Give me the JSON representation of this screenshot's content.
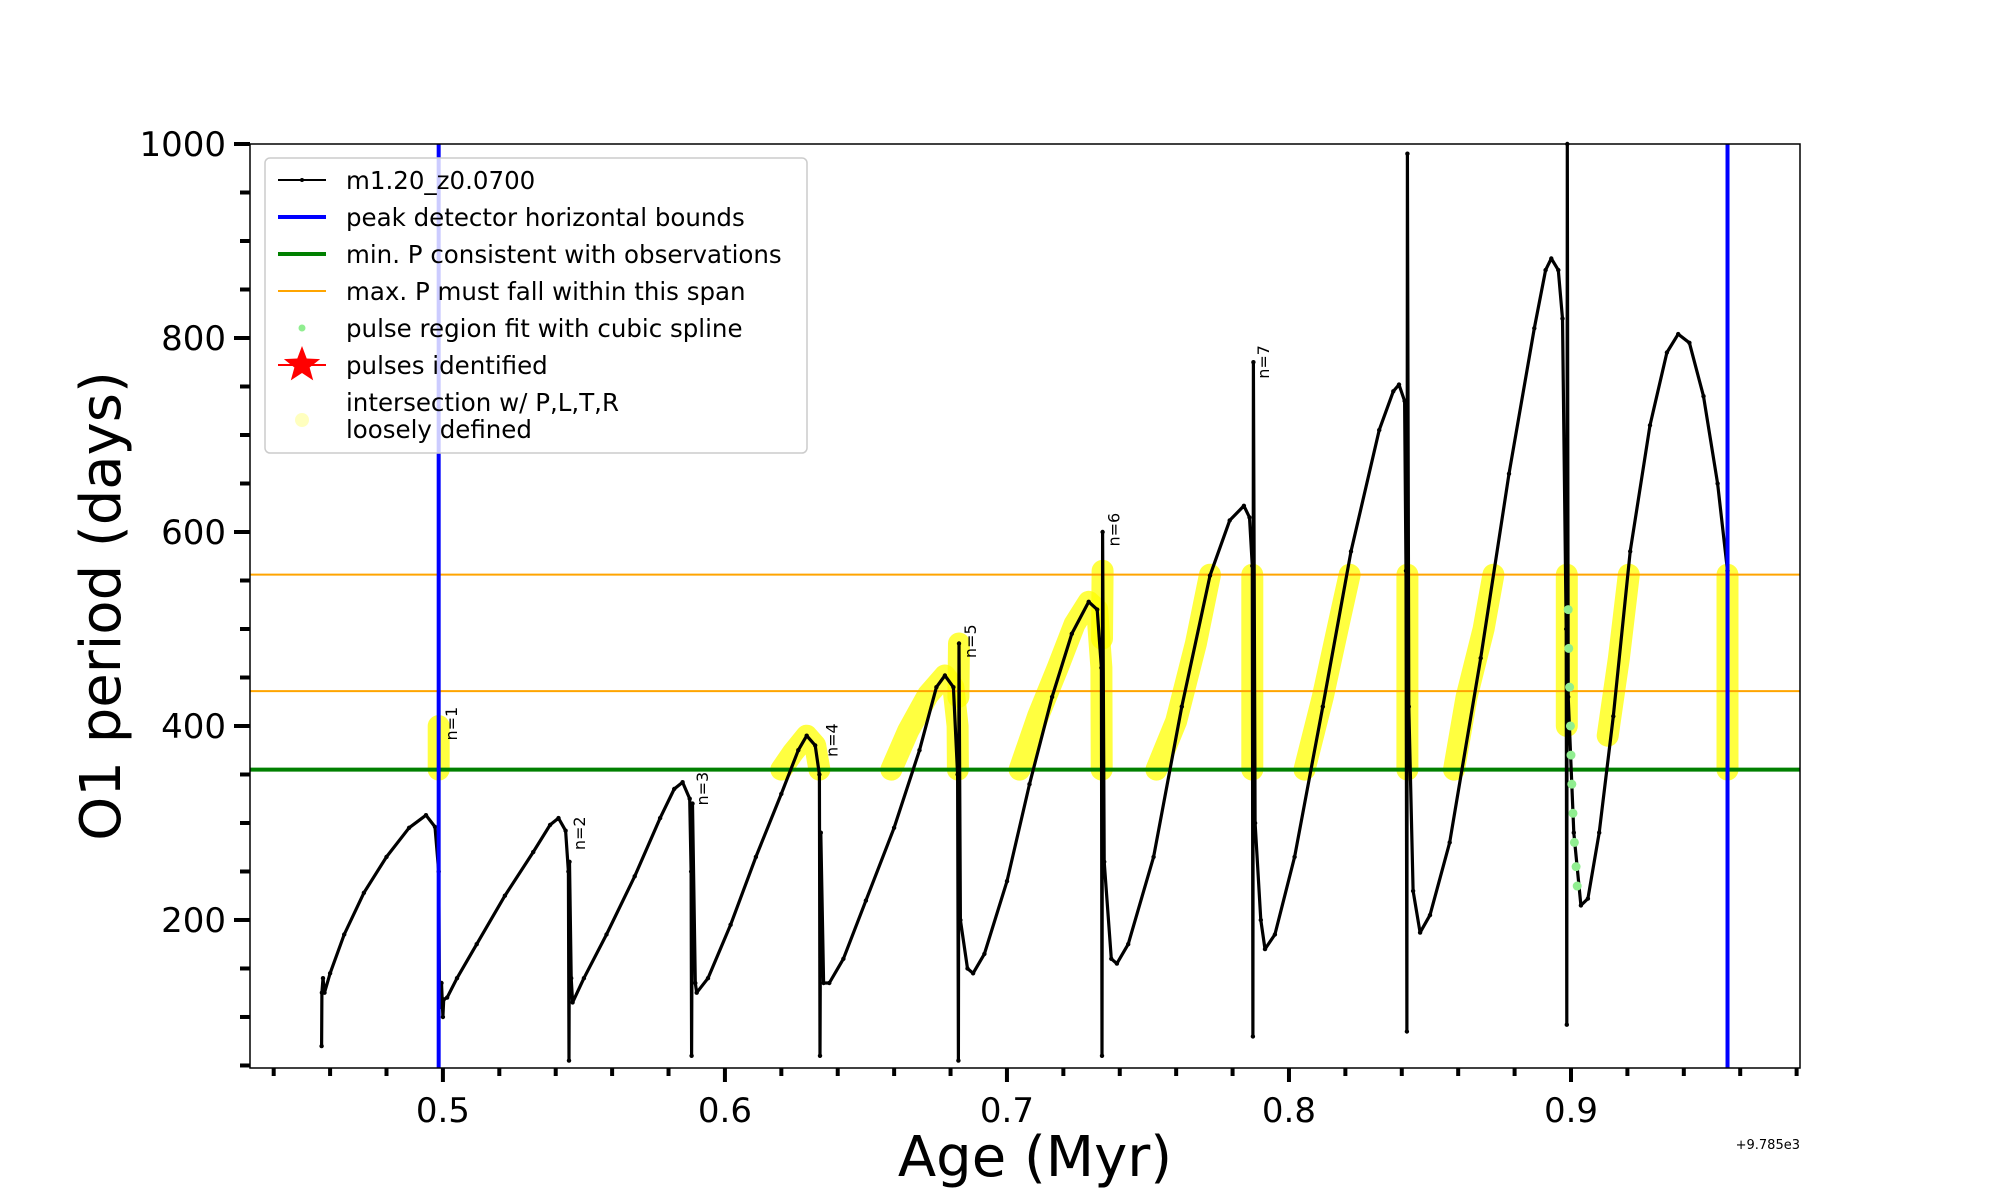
{
  "chart_data": {
    "type": "line",
    "title": "",
    "xlabel": "Age (Myr)",
    "ylabel": "O1 period (days)",
    "x_offset_text": "+9.785e3",
    "xlim": [
      0.4316,
      0.9812
    ],
    "ylim": [
      47.4,
      1000
    ],
    "x_major_ticks": [
      0.5,
      0.6,
      0.7,
      0.8,
      0.9
    ],
    "x_tick_labels": [
      "0.5",
      "0.6",
      "0.7",
      "0.8",
      "0.9"
    ],
    "x_minor_step": 0.02,
    "y_major_ticks": [
      200,
      400,
      600,
      800,
      1000
    ],
    "y_tick_labels": [
      "200",
      "400",
      "600",
      "800",
      "1000"
    ],
    "y_minor_step": 50,
    "grid": false,
    "legend_position": "upper-left",
    "colors": {
      "track": "#000000",
      "bounds": "#0000ff",
      "min_p": "#008000",
      "max_p_span": "#ffa500",
      "spline": "#90ee90",
      "pulses": "#ff0000",
      "intersection": "#ffff00"
    },
    "legend": [
      {
        "label": "m1.20_z0.0700",
        "marker": "line-dot",
        "color_key": "track"
      },
      {
        "label": "peak detector horizontal bounds",
        "marker": "thick-line",
        "color_key": "bounds"
      },
      {
        "label": "min. P consistent with observations",
        "marker": "thick-line",
        "color_key": "min_p"
      },
      {
        "label": "max. P must fall within this span",
        "marker": "thin-line",
        "color_key": "max_p_span"
      },
      {
        "label": "pulse region fit with cubic spline",
        "marker": "dot",
        "color_key": "spline"
      },
      {
        "label": "pulses identified",
        "marker": "star",
        "color_key": "pulses"
      },
      {
        "label": "intersection w/ P,L,T,R\nloosely defined",
        "marker": "circle",
        "color_key": "intersection"
      }
    ],
    "bounds_x": [
      0.4985,
      0.9555
    ],
    "min_p": 355,
    "max_p_span": [
      436,
      556
    ],
    "series": [
      {
        "name": "m1.20_z0.0700",
        "segments": [
          [
            [
              0.457,
              70
            ],
            [
              0.4571,
              125
            ],
            [
              0.4575,
              140
            ],
            [
              0.458,
              125
            ],
            [
              0.46,
              145
            ],
            [
              0.465,
              185
            ],
            [
              0.472,
              228
            ],
            [
              0.48,
              265
            ],
            [
              0.488,
              295
            ],
            [
              0.494,
              308
            ],
            [
              0.4972,
              296
            ],
            [
              0.4985,
              250
            ],
            [
              0.4988,
              110
            ],
            [
              0.4995,
              135
            ],
            [
              0.5,
              100
            ],
            [
              0.5003,
              118
            ],
            [
              0.5015,
              120
            ],
            [
              0.505,
              140
            ],
            [
              0.512,
              175
            ],
            [
              0.522,
              225
            ],
            [
              0.532,
              270
            ],
            [
              0.538,
              298
            ],
            [
              0.541,
              305
            ],
            [
              0.5435,
              292
            ],
            [
              0.5445,
              250
            ],
            [
              0.5447,
              55
            ],
            [
              0.5449,
              260
            ],
            [
              0.5455,
              140
            ],
            [
              0.546,
              115
            ],
            [
              0.55,
              140
            ],
            [
              0.558,
              185
            ],
            [
              0.568,
              245
            ],
            [
              0.577,
              305
            ],
            [
              0.582,
              335
            ],
            [
              0.585,
              342
            ],
            [
              0.5875,
              325
            ],
            [
              0.588,
              250
            ],
            [
              0.5882,
              60
            ],
            [
              0.5885,
              320
            ],
            [
              0.5895,
              135
            ],
            [
              0.59,
              125
            ],
            [
              0.594,
              140
            ],
            [
              0.602,
              195
            ],
            [
              0.611,
              265
            ],
            [
              0.62,
              330
            ],
            [
              0.626,
              375
            ],
            [
              0.629,
              390
            ],
            [
              0.632,
              380
            ],
            [
              0.6335,
              350
            ],
            [
              0.6337,
              60
            ],
            [
              0.634,
              290
            ],
            [
              0.635,
              135
            ],
            [
              0.637,
              135
            ],
            [
              0.642,
              160
            ],
            [
              0.65,
              220
            ],
            [
              0.66,
              295
            ],
            [
              0.669,
              375
            ],
            [
              0.675,
              440
            ],
            [
              0.678,
              452
            ],
            [
              0.681,
              440
            ],
            [
              0.6825,
              350
            ],
            [
              0.6828,
              55
            ],
            [
              0.683,
              485
            ],
            [
              0.6835,
              200
            ],
            [
              0.686,
              150
            ],
            [
              0.688,
              145
            ],
            [
              0.692,
              165
            ],
            [
              0.7,
              240
            ],
            [
              0.708,
              340
            ],
            [
              0.716,
              430
            ],
            [
              0.723,
              495
            ],
            [
              0.729,
              528
            ],
            [
              0.732,
              520
            ],
            [
              0.7335,
              460
            ],
            [
              0.7337,
              60
            ],
            [
              0.7339,
              600
            ],
            [
              0.7345,
              260
            ],
            [
              0.737,
              160
            ],
            [
              0.739,
              155
            ],
            [
              0.743,
              175
            ],
            [
              0.752,
              265
            ],
            [
              0.762,
              420
            ],
            [
              0.772,
              555
            ],
            [
              0.779,
              612
            ],
            [
              0.784,
              627
            ],
            [
              0.786,
              615
            ],
            [
              0.787,
              565
            ],
            [
              0.7872,
              80
            ],
            [
              0.7874,
              775
            ],
            [
              0.788,
              300
            ],
            [
              0.79,
              200
            ],
            [
              0.7915,
              170
            ],
            [
              0.795,
              185
            ],
            [
              0.802,
              265
            ],
            [
              0.812,
              420
            ],
            [
              0.822,
              580
            ],
            [
              0.832,
              705
            ],
            [
              0.837,
              745
            ],
            [
              0.839,
              752
            ],
            [
              0.841,
              735
            ],
            [
              0.8415,
              560
            ],
            [
              0.8418,
              85
            ],
            [
              0.842,
              990
            ],
            [
              0.8425,
              420
            ],
            [
              0.844,
              230
            ],
            [
              0.8465,
              187
            ],
            [
              0.85,
              205
            ],
            [
              0.857,
              280
            ],
            [
              0.868,
              470
            ],
            [
              0.878,
              660
            ],
            [
              0.887,
              810
            ],
            [
              0.891,
              870
            ],
            [
              0.893,
              882
            ],
            [
              0.8955,
              870
            ],
            [
              0.897,
              820
            ],
            [
              0.8983,
              500
            ],
            [
              0.8985,
              92
            ],
            [
              0.8987,
              1000
            ],
            [
              0.899,
              430
            ],
            [
              0.901,
              290
            ],
            [
              0.9035,
              215
            ],
            [
              0.906,
              222
            ],
            [
              0.91,
              290
            ],
            [
              0.915,
              410
            ],
            [
              0.921,
              580
            ],
            [
              0.928,
              710
            ],
            [
              0.934,
              785
            ],
            [
              0.938,
              804
            ],
            [
              0.942,
              795
            ],
            [
              0.947,
              740
            ],
            [
              0.952,
              650
            ],
            [
              0.9555,
              560
            ]
          ]
        ]
      }
    ],
    "intersection_segments": [
      [
        [
          0.4985,
          355
        ],
        [
          0.4985,
          400
        ]
      ],
      [
        [
          0.62,
          355
        ],
        [
          0.624,
          372
        ],
        [
          0.629,
          390
        ],
        [
          0.632,
          380
        ],
        [
          0.6335,
          355
        ]
      ],
      [
        [
          0.659,
          355
        ],
        [
          0.665,
          395
        ],
        [
          0.672,
          432
        ],
        [
          0.678,
          452
        ],
        [
          0.681,
          440
        ],
        [
          0.6825,
          400
        ],
        [
          0.6826,
          355
        ]
      ],
      [
        [
          0.6828,
          430
        ],
        [
          0.683,
          485
        ]
      ],
      [
        [
          0.7045,
          355
        ],
        [
          0.711,
          410
        ],
        [
          0.718,
          460
        ],
        [
          0.724,
          505
        ],
        [
          0.729,
          528
        ],
        [
          0.732,
          520
        ],
        [
          0.7335,
          460
        ],
        [
          0.7336,
          355
        ]
      ],
      [
        [
          0.7337,
          490
        ],
        [
          0.7339,
          560
        ]
      ],
      [
        [
          0.753,
          355
        ],
        [
          0.76,
          405
        ],
        [
          0.767,
          485
        ],
        [
          0.772,
          556
        ]
      ],
      [
        [
          0.787,
          355
        ],
        [
          0.787,
          556
        ]
      ],
      [
        [
          0.8055,
          355
        ],
        [
          0.812,
          430
        ],
        [
          0.818,
          510
        ],
        [
          0.8215,
          556
        ]
      ],
      [
        [
          0.842,
          355
        ],
        [
          0.842,
          556
        ]
      ],
      [
        [
          0.8585,
          355
        ],
        [
          0.863,
          430
        ],
        [
          0.869,
          500
        ],
        [
          0.8725,
          556
        ]
      ],
      [
        [
          0.8985,
          400
        ],
        [
          0.8985,
          556
        ]
      ],
      [
        [
          0.913,
          390
        ],
        [
          0.917,
          470
        ],
        [
          0.9205,
          556
        ]
      ],
      [
        [
          0.9555,
          355
        ],
        [
          0.9555,
          556
        ]
      ]
    ],
    "spline_points": [
      [
        0.899,
        520
      ],
      [
        0.8992,
        480
      ],
      [
        0.8995,
        440
      ],
      [
        0.8998,
        400
      ],
      [
        0.9,
        370
      ],
      [
        0.9003,
        340
      ],
      [
        0.9007,
        310
      ],
      [
        0.9012,
        280
      ],
      [
        0.9018,
        255
      ],
      [
        0.9022,
        235
      ]
    ],
    "pulse_labels": [
      {
        "text": "n=1",
        "x": 0.5,
        "y": 385
      },
      {
        "text": "n=2",
        "x": 0.5455,
        "y": 272
      },
      {
        "text": "n=3",
        "x": 0.589,
        "y": 318
      },
      {
        "text": "n=4",
        "x": 0.635,
        "y": 368
      },
      {
        "text": "n=5",
        "x": 0.684,
        "y": 470
      },
      {
        "text": "n=6",
        "x": 0.735,
        "y": 585
      },
      {
        "text": "n=7",
        "x": 0.788,
        "y": 758
      }
    ]
  }
}
